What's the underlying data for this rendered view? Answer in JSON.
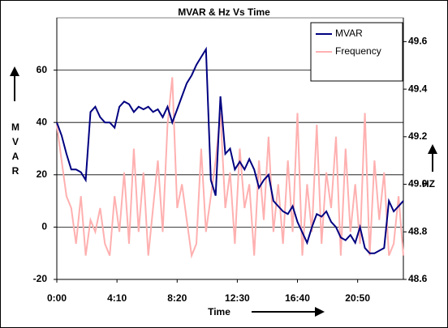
{
  "chart_data": {
    "type": "line",
    "title": "MVAR & Hz  Vs Time",
    "x_label": "Time",
    "y_label": "MVAR",
    "y2_label": "HZ",
    "x": [
      0,
      20,
      40,
      60,
      80,
      100,
      120,
      140,
      160,
      180,
      200,
      220,
      240,
      260,
      280,
      300,
      320,
      340,
      360,
      380,
      400,
      420,
      440,
      460,
      480,
      500,
      520,
      540,
      560,
      580,
      600,
      620,
      640,
      660,
      680,
      700,
      720,
      740,
      760,
      780,
      800,
      820,
      840,
      860,
      880,
      900,
      920,
      940,
      960,
      980,
      1000,
      1020,
      1040,
      1060,
      1080,
      1100,
      1120,
      1140,
      1160,
      1180,
      1200,
      1220,
      1240,
      1260,
      1280,
      1300,
      1320,
      1340,
      1360,
      1380,
      1400,
      1420,
      1440
    ],
    "series": [
      {
        "name": "MVAR",
        "color": "#000080",
        "values": [
          40,
          35,
          28,
          22,
          22,
          21,
          18,
          44,
          46,
          42,
          40,
          40,
          38,
          46,
          48,
          47,
          44,
          46,
          45,
          46,
          44,
          45,
          42,
          46,
          40,
          45,
          50,
          55,
          58,
          62,
          65,
          68,
          18,
          12,
          50,
          28,
          30,
          22,
          25,
          22,
          26,
          22,
          15,
          18,
          20,
          10,
          8,
          6,
          5,
          8,
          2,
          -2,
          -6,
          0,
          5,
          4,
          6,
          2,
          0,
          -4,
          -5,
          -3,
          -6,
          0,
          -8,
          -10,
          -10,
          -9,
          -8,
          10,
          6,
          8,
          10
        ]
      },
      {
        "name": "Frequency",
        "color": "#ffb0b0",
        "axis": "y2",
        "values": [
          49.25,
          49.1,
          48.95,
          48.9,
          48.75,
          48.95,
          48.7,
          48.85,
          48.8,
          48.9,
          48.75,
          48.7,
          48.95,
          48.8,
          49.05,
          48.75,
          49.15,
          48.8,
          49.05,
          48.7,
          48.9,
          49.1,
          48.8,
          49.25,
          49.45,
          48.9,
          49.0,
          48.85,
          48.7,
          48.75,
          49.15,
          48.8,
          48.95,
          49.1,
          49.3,
          48.9,
          49.05,
          48.75,
          49.15,
          48.9,
          49.0,
          48.7,
          49.1,
          48.85,
          49.2,
          48.8,
          49.0,
          48.75,
          49.1,
          48.8,
          49.3,
          48.7,
          49.0,
          48.8,
          49.25,
          48.75,
          49.05,
          48.9,
          49.2,
          48.7,
          49.15,
          48.8,
          49.0,
          48.75,
          49.3,
          48.7,
          49.1,
          48.85,
          49.05,
          48.7,
          48.75,
          48.95,
          48.7
        ]
      }
    ],
    "xlim": [
      0,
      1440
    ],
    "xticks": [
      {
        "value": 0,
        "label": "0:00"
      },
      {
        "value": 250,
        "label": "4:10"
      },
      {
        "value": 500,
        "label": "8:20"
      },
      {
        "value": 750,
        "label": "12:30"
      },
      {
        "value": 1000,
        "label": "16:40"
      },
      {
        "value": 1250,
        "label": "20:50"
      }
    ],
    "ylim": [
      -20,
      80
    ],
    "yticks": [
      -20,
      0,
      20,
      40,
      60
    ],
    "y2lim": [
      48.6,
      49.7
    ],
    "y2ticks": [
      48.6,
      48.8,
      {
        "value": 49,
        "label": "49.0"
      },
      49.2,
      49.4,
      49.6
    ],
    "grid": true,
    "legend": "top-right"
  }
}
